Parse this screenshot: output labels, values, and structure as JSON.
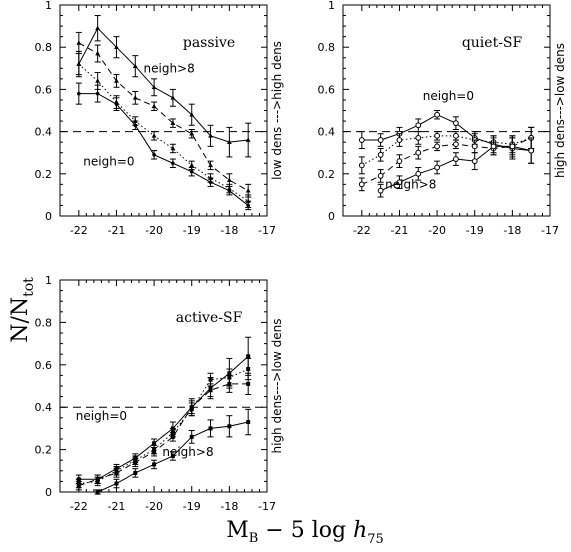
{
  "figure": {
    "ylabel_main": "N/N",
    "ylabel_sub": "tot",
    "xlabel_parts": [
      "M",
      "B",
      " − 5 log ",
      "h",
      "75"
    ]
  },
  "chart_data": [
    {
      "type": "line",
      "title": "passive",
      "side_label": "low dens --->high dens",
      "xlim": [
        -22.5,
        -17
      ],
      "ylim": [
        0,
        1
      ],
      "x_ticks": [
        -22,
        -21,
        -20,
        -19,
        -18,
        -17
      ],
      "y_ticks": [
        0,
        0.2,
        0.4,
        0.6,
        0.8,
        1
      ],
      "reference_line": 0.4,
      "annotations": [
        {
          "text": "neigh>8",
          "x": -19.6,
          "y": 0.68
        },
        {
          "text": "neigh=0",
          "x": -21.2,
          "y": 0.24
        }
      ],
      "series": [
        {
          "name": "neigh>8",
          "style": "solid",
          "marker": "tri",
          "x": [
            -22,
            -21.5,
            -21,
            -20.5,
            -20,
            -19.5,
            -19,
            -18.5,
            -18,
            -17.5
          ],
          "y": [
            0.72,
            0.89,
            0.8,
            0.71,
            0.61,
            0.56,
            0.48,
            0.38,
            0.35,
            0.36
          ],
          "err": [
            0.06,
            0.06,
            0.05,
            0.05,
            0.04,
            0.04,
            0.05,
            0.05,
            0.07,
            0.08
          ]
        },
        {
          "name": "",
          "style": "dashed",
          "marker": "tri",
          "x": [
            -22,
            -21.5,
            -21,
            -20.5,
            -20,
            -19.5,
            -19,
            -18.5,
            -18,
            -17.5
          ],
          "y": [
            0.82,
            0.77,
            0.64,
            0.56,
            0.52,
            0.44,
            0.39,
            0.24,
            0.17,
            0.12
          ],
          "err": [
            0.05,
            0.04,
            0.03,
            0.03,
            0.02,
            0.02,
            0.02,
            0.02,
            0.03,
            0.03
          ]
        },
        {
          "name": "",
          "style": "dotted",
          "marker": "tri",
          "x": [
            -22,
            -21.5,
            -21,
            -20.5,
            -20,
            -19.5,
            -19,
            -18.5,
            -18,
            -17.5
          ],
          "y": [
            0.72,
            0.64,
            0.54,
            0.45,
            0.38,
            0.32,
            0.24,
            0.18,
            0.13,
            0.07
          ],
          "err": [
            0.05,
            0.04,
            0.03,
            0.02,
            0.02,
            0.02,
            0.02,
            0.02,
            0.02,
            0.03
          ]
        },
        {
          "name": "neigh=0",
          "style": "solid",
          "marker": "dot",
          "x": [
            -22,
            -21.5,
            -21,
            -20.5,
            -20,
            -19.5,
            -19,
            -18.5,
            -18,
            -17.5
          ],
          "y": [
            0.58,
            0.58,
            0.53,
            0.43,
            0.29,
            0.25,
            0.21,
            0.16,
            0.12,
            0.05
          ],
          "err": [
            0.05,
            0.04,
            0.03,
            0.02,
            0.02,
            0.02,
            0.02,
            0.02,
            0.02,
            0.02
          ]
        }
      ]
    },
    {
      "type": "line",
      "title": "quiet-SF",
      "side_label": "high dens--->low dens",
      "xlim": [
        -22.5,
        -17
      ],
      "ylim": [
        0,
        1
      ],
      "x_ticks": [
        -22,
        -21,
        -20,
        -19,
        -18,
        -17
      ],
      "y_ticks": [
        0,
        0.2,
        0.4,
        0.6,
        0.8,
        1
      ],
      "reference_line": 0.4,
      "annotations": [
        {
          "text": "neigh=0",
          "x": -19.7,
          "y": 0.55
        },
        {
          "text": "neigh>8",
          "x": -20.7,
          "y": 0.13
        }
      ],
      "series": [
        {
          "name": "neigh=0",
          "style": "solid",
          "marker": "circle",
          "x": [
            -22,
            -21.5,
            -21,
            -20.5,
            -20,
            -19.5,
            -19,
            -18.5,
            -18,
            -17.5
          ],
          "y": [
            0.36,
            0.36,
            0.39,
            0.43,
            0.48,
            0.44,
            0.37,
            0.34,
            0.32,
            0.31
          ],
          "err": [
            0.04,
            0.03,
            0.03,
            0.03,
            0.02,
            0.03,
            0.03,
            0.04,
            0.05,
            0.06
          ]
        },
        {
          "name": "",
          "style": "dotted",
          "marker": "circle",
          "x": [
            -22,
            -21.5,
            -21,
            -20.5,
            -20,
            -19.5,
            -19,
            -18.5,
            -18,
            -17.5
          ],
          "y": [
            0.24,
            0.29,
            0.36,
            0.37,
            0.38,
            0.38,
            0.36,
            0.35,
            0.34,
            0.37
          ],
          "err": [
            0.04,
            0.03,
            0.03,
            0.03,
            0.02,
            0.02,
            0.03,
            0.03,
            0.04,
            0.05
          ]
        },
        {
          "name": "",
          "style": "dashed",
          "marker": "circle",
          "x": [
            -22,
            -21.5,
            -21,
            -20.5,
            -20,
            -19.5,
            -19,
            -18.5,
            -18,
            -17.5
          ],
          "y": [
            0.15,
            0.19,
            0.26,
            0.3,
            0.33,
            0.34,
            0.33,
            0.32,
            0.33,
            0.37
          ],
          "err": [
            0.03,
            0.03,
            0.03,
            0.03,
            0.02,
            0.02,
            0.03,
            0.03,
            0.04,
            0.05
          ]
        },
        {
          "name": "neigh>8",
          "style": "solid",
          "marker": "circle",
          "x": [
            -21.5,
            -21,
            -20.5,
            -20,
            -19.5,
            -19,
            -18.5,
            -18,
            -17.5
          ],
          "y": [
            0.12,
            0.16,
            0.2,
            0.23,
            0.27,
            0.26,
            0.33,
            0.33,
            0.31
          ],
          "err": [
            0.03,
            0.03,
            0.03,
            0.03,
            0.03,
            0.04,
            0.04,
            0.05,
            0.06
          ]
        }
      ]
    },
    {
      "type": "line",
      "title": "active-SF",
      "side_label": "high dens--->low dens",
      "xlim": [
        -22.5,
        -17
      ],
      "ylim": [
        0,
        1
      ],
      "x_ticks": [
        -22,
        -21,
        -20,
        -19,
        -18,
        -17
      ],
      "y_ticks": [
        0,
        0.2,
        0.4,
        0.6,
        0.8,
        1
      ],
      "reference_line": 0.4,
      "annotations": [
        {
          "text": "neigh=0",
          "x": -21.4,
          "y": 0.34
        },
        {
          "text": "neigh>8",
          "x": -19.1,
          "y": 0.17
        }
      ],
      "series": [
        {
          "name": "neigh=0",
          "style": "solid",
          "marker": "square",
          "x": [
            -22,
            -21.5,
            -21,
            -20.5,
            -20,
            -19.5,
            -19,
            -18.5,
            -18,
            -17.5
          ],
          "y": [
            0.06,
            0.06,
            0.11,
            0.16,
            0.23,
            0.3,
            0.4,
            0.49,
            0.56,
            0.64
          ],
          "err": [
            0.02,
            0.02,
            0.02,
            0.02,
            0.02,
            0.03,
            0.04,
            0.05,
            0.07,
            0.09
          ]
        },
        {
          "name": "",
          "style": "dotted",
          "marker": "square",
          "x": [
            -22,
            -21.5,
            -21,
            -20.5,
            -20,
            -19.5,
            -19,
            -18.5,
            -18,
            -17.5
          ],
          "y": [
            0.04,
            0.05,
            0.1,
            0.15,
            0.2,
            0.28,
            0.39,
            0.53,
            0.54,
            0.58
          ],
          "err": [
            0.02,
            0.02,
            0.02,
            0.02,
            0.02,
            0.02,
            0.03,
            0.03,
            0.04,
            0.05
          ]
        },
        {
          "name": "",
          "style": "dashed",
          "marker": "square",
          "x": [
            -22,
            -21.5,
            -21,
            -20.5,
            -20,
            -19.5,
            -19,
            -18.5,
            -18,
            -17.5
          ],
          "y": [
            0.03,
            0.06,
            0.09,
            0.14,
            0.19,
            0.26,
            0.4,
            0.48,
            0.51,
            0.51
          ],
          "err": [
            0.02,
            0.02,
            0.02,
            0.02,
            0.02,
            0.02,
            0.03,
            0.03,
            0.04,
            0.05
          ]
        },
        {
          "name": "neigh>8",
          "style": "solid",
          "marker": "square",
          "x": [
            -21.5,
            -21,
            -20.5,
            -20,
            -19.5,
            -19,
            -18.5,
            -18,
            -17.5
          ],
          "y": [
            0.0,
            0.04,
            0.09,
            0.13,
            0.17,
            0.26,
            0.3,
            0.31,
            0.33
          ],
          "err": [
            0.01,
            0.02,
            0.02,
            0.02,
            0.02,
            0.03,
            0.04,
            0.05,
            0.06
          ]
        }
      ]
    }
  ]
}
